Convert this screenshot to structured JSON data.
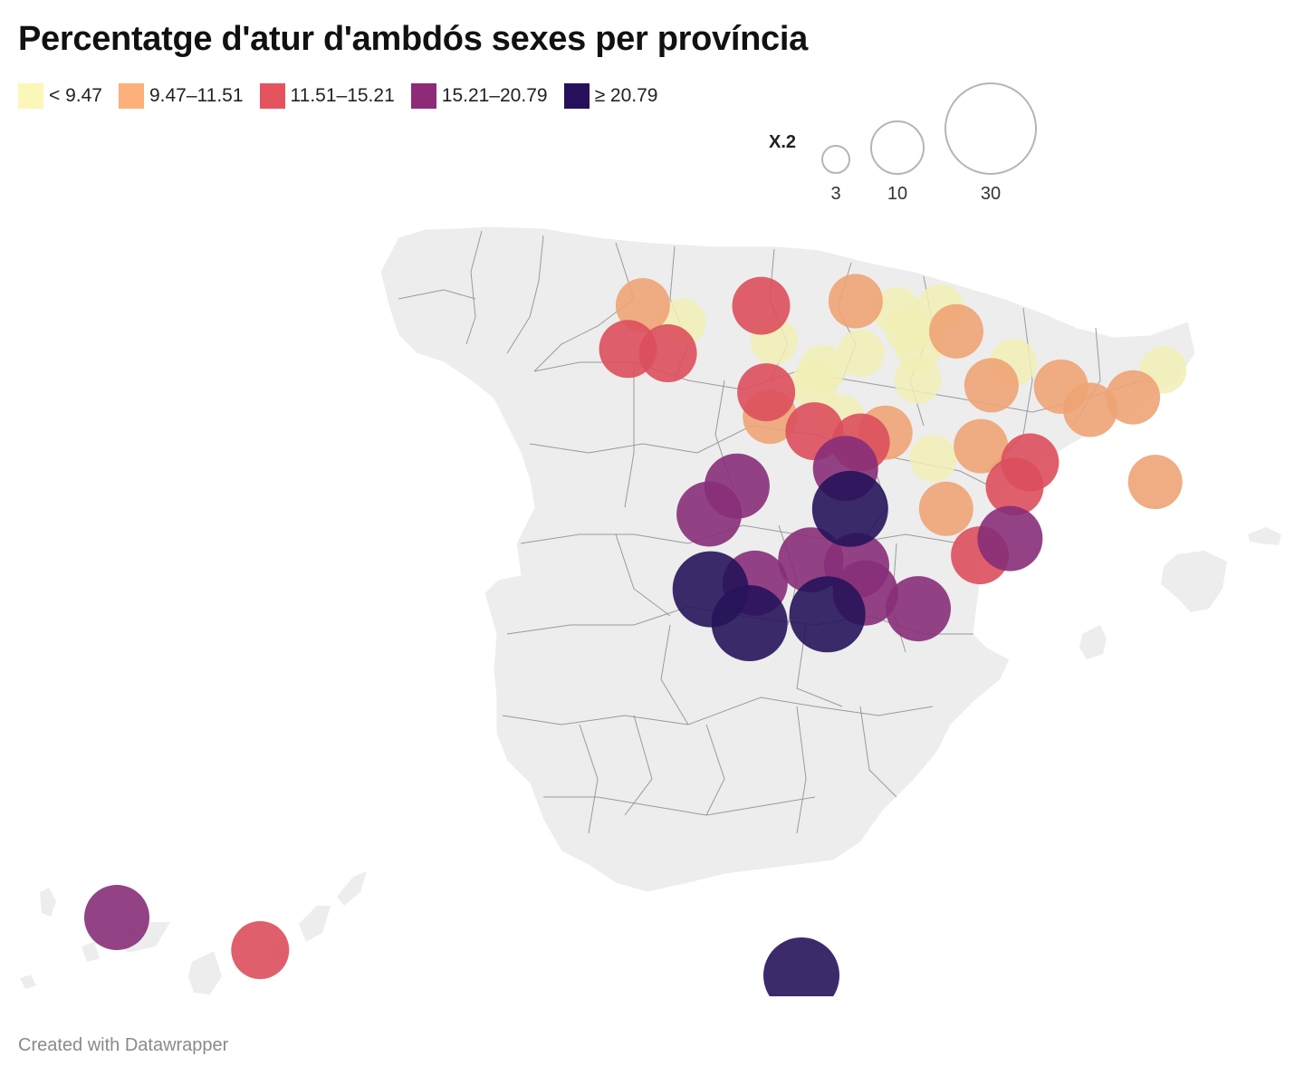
{
  "title": "Percentatge d'atur d'ambdós sexes per província",
  "footer": "Created with Datawrapper",
  "legend": {
    "items": [
      {
        "label": "< 9.47",
        "color": "#fbf7b8"
      },
      {
        "label": "9.47–11.51",
        "color": "#fdaf7a"
      },
      {
        "label": "11.51–15.21",
        "color": "#e3545f"
      },
      {
        "label": "15.21–20.79",
        "color": "#8e2a78"
      },
      {
        "label": "≥ 20.79",
        "color": "#27105b"
      }
    ]
  },
  "size_legend": {
    "title": "X.2",
    "values": [
      {
        "label": "3",
        "value": 3
      },
      {
        "label": "10",
        "value": 10
      },
      {
        "label": "30",
        "value": 30
      }
    ]
  },
  "colors": {
    "land": "#ededed",
    "border": "#9a9a9a",
    "c1": "#f1eeb4",
    "c2": "#eea374",
    "c3": "#dc4f5c",
    "c4": "#872f78",
    "c5": "#27145a"
  },
  "chart_data": {
    "type": "proportional-symbol-map",
    "title": "Percentatge d'atur d'ambdós sexes per província",
    "size_variable": "X.2",
    "color_bins": [
      "< 9.47",
      "9.47–11.51",
      "11.51–15.21",
      "15.21–20.79",
      "≥ 20.79"
    ],
    "symbols": [
      {
        "lon": -8.4,
        "lat": 43.37,
        "cls": 2
      },
      {
        "lon": -7.55,
        "lat": 43.01,
        "cls": 1
      },
      {
        "lon": -5.85,
        "lat": 43.36,
        "cls": 3
      },
      {
        "lon": -3.81,
        "lat": 43.46,
        "cls": 2
      },
      {
        "lon": -2.93,
        "lat": 43.26,
        "cls": 1
      },
      {
        "lon": -1.98,
        "lat": 43.32,
        "cls": 1
      },
      {
        "lon": -2.67,
        "lat": 42.85,
        "cls": 1
      },
      {
        "lon": -1.64,
        "lat": 42.81,
        "cls": 2
      },
      {
        "lon": -8.72,
        "lat": 42.43,
        "cls": 3
      },
      {
        "lon": -7.86,
        "lat": 42.34,
        "cls": 3
      },
      {
        "lon": -5.57,
        "lat": 42.6,
        "cls": 1
      },
      {
        "lon": -4.53,
        "lat": 42.01,
        "cls": 1
      },
      {
        "lon": -3.7,
        "lat": 42.34,
        "cls": 1
      },
      {
        "lon": -2.45,
        "lat": 42.47,
        "cls": 1
      },
      {
        "lon": -0.41,
        "lat": 42.14,
        "cls": 1
      },
      {
        "lon": 0.62,
        "lat": 41.62,
        "cls": 2
      },
      {
        "lon": 2.82,
        "lat": 41.98,
        "cls": 1
      },
      {
        "lon": 2.17,
        "lat": 41.39,
        "cls": 2
      },
      {
        "lon": 1.25,
        "lat": 41.12,
        "cls": 2
      },
      {
        "lon": -5.74,
        "lat": 41.5,
        "cls": 3
      },
      {
        "lon": -4.72,
        "lat": 41.65,
        "cls": 1
      },
      {
        "lon": -2.47,
        "lat": 41.76,
        "cls": 1
      },
      {
        "lon": -0.88,
        "lat": 41.65,
        "cls": 2
      },
      {
        "lon": -4.12,
        "lat": 40.94,
        "cls": 1
      },
      {
        "lon": -5.66,
        "lat": 40.97,
        "cls": 2
      },
      {
        "lon": -4.7,
        "lat": 40.66,
        "cls": 3
      },
      {
        "lon": -3.7,
        "lat": 40.42,
        "cls": 3
      },
      {
        "lon": -3.17,
        "lat": 40.63,
        "cls": 2
      },
      {
        "lon": -1.11,
        "lat": 40.34,
        "cls": 2
      },
      {
        "lon": -0.05,
        "lat": 39.99,
        "cls": 3
      },
      {
        "lon": -4.03,
        "lat": 39.86,
        "cls": 4
      },
      {
        "lon": -2.14,
        "lat": 40.07,
        "cls": 1
      },
      {
        "lon": -6.37,
        "lat": 39.48,
        "cls": 4
      },
      {
        "lon": -0.38,
        "lat": 39.47,
        "cls": 3
      },
      {
        "lon": -3.93,
        "lat": 38.99,
        "cls": 5
      },
      {
        "lon": -1.86,
        "lat": 38.99,
        "cls": 2
      },
      {
        "lon": -6.97,
        "lat": 38.88,
        "cls": 4
      },
      {
        "lon": -0.48,
        "lat": 38.35,
        "cls": 4
      },
      {
        "lon": -1.13,
        "lat": 37.99,
        "cls": 3
      },
      {
        "lon": -4.78,
        "lat": 37.89,
        "cls": 4
      },
      {
        "lon": -3.79,
        "lat": 37.77,
        "cls": 4
      },
      {
        "lon": -6.94,
        "lat": 37.26,
        "cls": 5
      },
      {
        "lon": -5.98,
        "lat": 37.39,
        "cls": 4
      },
      {
        "lon": -3.6,
        "lat": 37.18,
        "cls": 4
      },
      {
        "lon": -2.46,
        "lat": 36.84,
        "cls": 4
      },
      {
        "lon": -6.1,
        "lat": 36.53,
        "cls": 5
      },
      {
        "lon": -4.42,
        "lat": 36.72,
        "cls": 5
      },
      {
        "lon": 2.65,
        "lat": 39.57,
        "cls": 2
      },
      {
        "lon": -16.25,
        "lat": 28.46,
        "cls": 4
      },
      {
        "lon": -15.43,
        "lat": 28.1,
        "cls": 3
      },
      {
        "lon": -2.93,
        "lat": 35.29,
        "cls": 5
      }
    ]
  }
}
